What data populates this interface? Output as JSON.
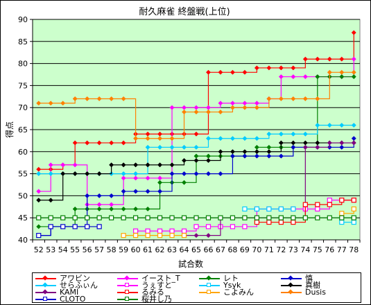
{
  "chart_data": {
    "type": "line",
    "title": "耐久麻雀 終盤戦(上位)",
    "xlabel": "試合数",
    "ylabel": "得点",
    "ylim": [
      40,
      90
    ],
    "y_ticks": [
      40,
      45,
      50,
      55,
      60,
      65,
      70,
      75,
      80,
      85,
      90
    ],
    "grid": true,
    "legend_position": "bottom",
    "plot_background": "#ccffcc",
    "categories": [
      52,
      53,
      54,
      55,
      56,
      57,
      58,
      59,
      60,
      61,
      62,
      63,
      64,
      65,
      66,
      67,
      68,
      69,
      70,
      71,
      72,
      73,
      74,
      75,
      76,
      77,
      78
    ],
    "series": [
      {
        "name": "アワビン",
        "color": "#ff0000",
        "marker": "diamond",
        "values": [
          56,
          56,
          57,
          62,
          62,
          62,
          62,
          62,
          64,
          64,
          64,
          64,
          64,
          64,
          78,
          78,
          78,
          78,
          79,
          79,
          79,
          79,
          81,
          81,
          81,
          81,
          87
        ]
      },
      {
        "name": "イースト_T",
        "color": "#ff00ff",
        "marker": "diamond",
        "values": [
          51,
          57,
          57,
          57,
          48,
          48,
          48,
          54,
          54,
          54,
          54,
          70,
          70,
          70,
          70,
          71,
          71,
          71,
          71,
          72,
          77,
          77,
          77,
          77,
          77,
          77,
          81
        ]
      },
      {
        "name": "レト",
        "color": "#008000",
        "marker": "diamond",
        "values": [
          43,
          43,
          43,
          47,
          47,
          47,
          47,
          47,
          47,
          47,
          53,
          53,
          53,
          59,
          59,
          59,
          59,
          59,
          61,
          61,
          61,
          61,
          61,
          77,
          77,
          77,
          77
        ]
      },
      {
        "name": "慎",
        "color": "#0000cc",
        "marker": "diamond",
        "values": [
          41,
          43,
          43,
          43,
          50,
          50,
          50,
          51,
          51,
          51,
          51,
          55,
          55,
          55,
          55,
          55,
          59,
          59,
          59,
          59,
          59,
          61,
          61,
          61,
          61,
          61,
          63
        ]
      },
      {
        "name": "せらふぃん",
        "color": "#00ccff",
        "marker": "diamond",
        "values": [
          55,
          55,
          55,
          55,
          55,
          55,
          55,
          55,
          55,
          61,
          61,
          61,
          61,
          61,
          63,
          63,
          63,
          63,
          63,
          64,
          64,
          64,
          64,
          66,
          66,
          66,
          66
        ]
      },
      {
        "name": "うぇすと",
        "color": "#ff00ff",
        "marker": "square",
        "values": [
          null,
          null,
          null,
          null,
          null,
          null,
          null,
          null,
          42,
          42,
          42,
          42,
          42,
          43,
          43,
          43,
          43,
          43,
          47,
          47,
          47,
          47,
          47,
          47,
          49,
          49,
          49
        ]
      },
      {
        "name": "Ysyk",
        "color": "#00ccff",
        "marker": "square",
        "values": [
          null,
          null,
          null,
          null,
          null,
          null,
          null,
          null,
          null,
          null,
          null,
          null,
          null,
          null,
          null,
          null,
          null,
          47,
          47,
          47,
          47,
          47,
          null,
          null,
          null,
          44,
          44
        ]
      },
      {
        "name": "真樹",
        "color": "#000000",
        "marker": "diamond",
        "values": [
          49,
          49,
          55,
          55,
          55,
          55,
          57,
          57,
          57,
          57,
          57,
          57,
          58,
          58,
          58,
          60,
          60,
          60,
          60,
          60,
          62,
          62,
          62,
          62,
          62,
          62,
          62
        ]
      },
      {
        "name": "KAMI",
        "color": "#800080",
        "marker": "diamond",
        "values": [
          null,
          null,
          null,
          null,
          null,
          null,
          null,
          null,
          null,
          null,
          null,
          null,
          41,
          41,
          41,
          45,
          45,
          45,
          45,
          45,
          45,
          45,
          61,
          61,
          62,
          62,
          62
        ]
      },
      {
        "name": "るみる",
        "color": "#ff0000",
        "marker": "square",
        "values": [
          null,
          null,
          null,
          null,
          null,
          null,
          null,
          null,
          null,
          null,
          null,
          null,
          null,
          null,
          null,
          null,
          null,
          null,
          44,
          44,
          44,
          44,
          48,
          48,
          48,
          49,
          49
        ]
      },
      {
        "name": "こよみん",
        "color": "#ffa500",
        "marker": "square",
        "values": [
          null,
          null,
          null,
          null,
          null,
          null,
          null,
          41,
          41,
          41,
          41,
          41,
          41,
          null,
          null,
          null,
          null,
          null,
          null,
          null,
          null,
          null,
          null,
          null,
          null,
          46,
          47
        ]
      },
      {
        "name": "Dusis",
        "color": "#ff8000",
        "marker": "diamond",
        "values": [
          71,
          71,
          71,
          72,
          72,
          72,
          72,
          72,
          63,
          63,
          63,
          63,
          69,
          69,
          69,
          69,
          70,
          70,
          70,
          72,
          72,
          72,
          72,
          72,
          78,
          78,
          78
        ]
      },
      {
        "name": "CLOTO",
        "color": "#0000cc",
        "marker": "square",
        "values": [
          41,
          43,
          43,
          43,
          43,
          43,
          null,
          null,
          null,
          null,
          null,
          null,
          null,
          null,
          null,
          null,
          null,
          null,
          null,
          null,
          null,
          null,
          null,
          null,
          null,
          null,
          null
        ]
      },
      {
        "name": "桜井し乃",
        "color": "#008000",
        "marker": "square",
        "values": [
          45,
          45,
          45,
          45,
          45,
          45,
          45,
          45,
          45,
          45,
          45,
          45,
          45,
          45,
          45,
          45,
          45,
          45,
          45,
          45,
          45,
          45,
          45,
          45,
          45,
          45,
          45
        ]
      }
    ]
  }
}
